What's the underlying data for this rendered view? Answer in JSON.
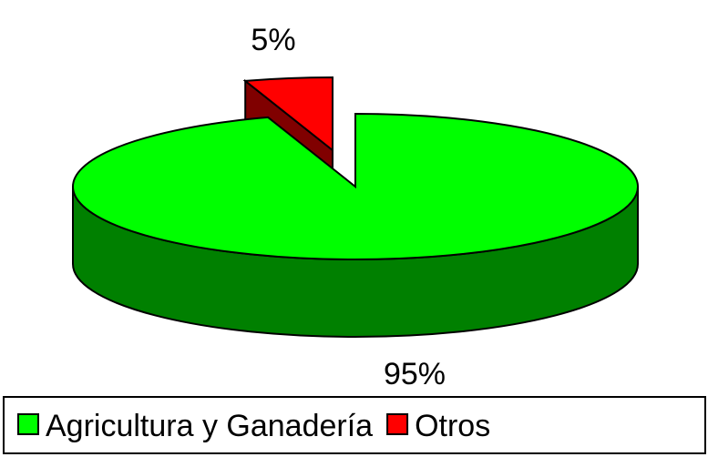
{
  "chart_data": {
    "type": "pie3d",
    "categories": [
      "Agricultura y Ganadería",
      "Otros"
    ],
    "values": [
      95,
      5
    ],
    "value_labels": [
      "95%",
      "5%"
    ],
    "colors": [
      "#00ff00",
      "#ff0000"
    ],
    "legend": "bottom"
  }
}
